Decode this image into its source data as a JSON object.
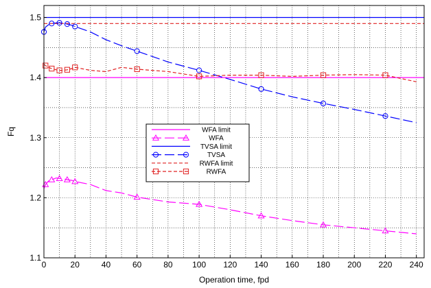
{
  "chart_data": {
    "type": "line",
    "xlabel": "Operation time, fpd",
    "ylabel": "Fq",
    "xlim": [
      0,
      245
    ],
    "ylim": [
      1.1,
      1.52
    ],
    "grid": true,
    "legend_position": "center-left",
    "x_ticks": [
      "0",
      "20",
      "40",
      "60",
      "80",
      "100",
      "120",
      "140",
      "160",
      "180",
      "200",
      "220",
      "240"
    ],
    "y_ticks": [
      "1.1",
      "1.2",
      "1.3",
      "1.4",
      "1.5"
    ],
    "series": [
      {
        "name": "WFA limit",
        "color": "#ff00ff",
        "dash": "solid",
        "marker": "none",
        "x": [
          0,
          245
        ],
        "y": [
          1.4,
          1.4
        ]
      },
      {
        "name": "WFA",
        "color": "#ff00ff",
        "dash": "longdash",
        "marker": "triangle",
        "x": [
          0,
          1,
          3,
          5,
          8,
          10,
          12,
          15,
          18,
          20,
          30,
          40,
          50,
          60,
          80,
          100,
          120,
          140,
          160,
          180,
          200,
          220,
          240
        ],
        "y": [
          1.215,
          1.222,
          1.228,
          1.23,
          1.233,
          1.232,
          1.232,
          1.23,
          1.229,
          1.227,
          1.222,
          1.212,
          1.208,
          1.201,
          1.193,
          1.189,
          1.18,
          1.17,
          1.162,
          1.155,
          1.15,
          1.145,
          1.14
        ],
        "marker_x": [
          1,
          5,
          10,
          15,
          20,
          60,
          100,
          140,
          180,
          220
        ],
        "marker_y": [
          1.222,
          1.23,
          1.232,
          1.23,
          1.227,
          1.201,
          1.189,
          1.17,
          1.155,
          1.145
        ]
      },
      {
        "name": "TVSA limit",
        "color": "#0000ff",
        "dash": "solid",
        "marker": "none",
        "x": [
          0,
          245
        ],
        "y": [
          1.5,
          1.5
        ]
      },
      {
        "name": "TVSA",
        "color": "#0000ff",
        "dash": "longdash",
        "marker": "circle",
        "x": [
          0,
          1,
          3,
          5,
          8,
          10,
          12,
          15,
          18,
          20,
          30,
          40,
          50,
          60,
          80,
          100,
          120,
          140,
          160,
          180,
          200,
          220,
          240
        ],
        "y": [
          1.476,
          1.484,
          1.488,
          1.49,
          1.491,
          1.491,
          1.491,
          1.489,
          1.487,
          1.485,
          1.476,
          1.463,
          1.453,
          1.444,
          1.426,
          1.412,
          1.397,
          1.381,
          1.368,
          1.357,
          1.347,
          1.336,
          1.325
        ],
        "marker_x": [
          0,
          5,
          10,
          15,
          20,
          60,
          100,
          140,
          180,
          220
        ],
        "marker_y": [
          1.476,
          1.49,
          1.491,
          1.489,
          1.485,
          1.444,
          1.412,
          1.381,
          1.357,
          1.336
        ]
      },
      {
        "name": "RWFA limit",
        "color": "#e02020",
        "dash": "shortdash",
        "marker": "none",
        "x": [
          0,
          245
        ],
        "y": [
          1.49,
          1.49
        ]
      },
      {
        "name": "RWFA",
        "color": "#e02020",
        "dash": "shortdash",
        "marker": "square",
        "x": [
          0,
          1,
          3,
          5,
          8,
          10,
          12,
          15,
          18,
          20,
          30,
          40,
          50,
          60,
          80,
          100,
          120,
          140,
          160,
          180,
          200,
          220,
          240
        ],
        "y": [
          1.422,
          1.42,
          1.417,
          1.415,
          1.413,
          1.412,
          1.412,
          1.413,
          1.415,
          1.417,
          1.412,
          1.41,
          1.417,
          1.414,
          1.41,
          1.402,
          1.404,
          1.404,
          1.402,
          1.404,
          1.405,
          1.404,
          1.393
        ],
        "marker_x": [
          1,
          5,
          10,
          15,
          20,
          60,
          100,
          140,
          180,
          220
        ],
        "marker_y": [
          1.42,
          1.415,
          1.412,
          1.413,
          1.417,
          1.414,
          1.402,
          1.404,
          1.404,
          1.404
        ]
      }
    ]
  }
}
